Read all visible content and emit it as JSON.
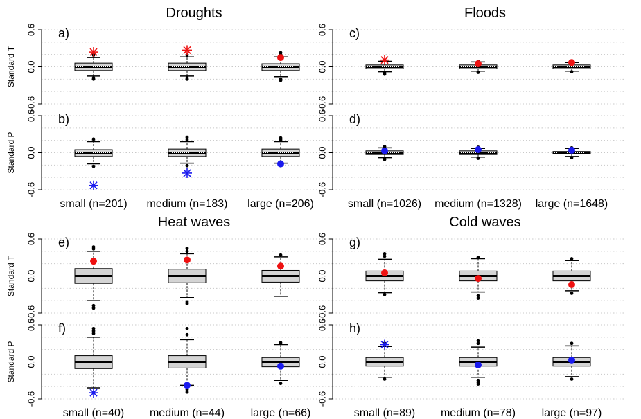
{
  "chart_data": [
    {
      "type": "boxplot",
      "group": "Droughts",
      "panel": "a)",
      "ylabel": "Standard T",
      "ylim": [
        -0.6,
        0.6
      ],
      "yticks": [
        "-0.6",
        "0.0",
        "0.6"
      ],
      "categories": [
        "small (n=201)",
        "medium (n=183)",
        "large (n=206)"
      ],
      "boxes": [
        {
          "min": -0.15,
          "q1": -0.06,
          "median": 0.0,
          "q3": 0.06,
          "max": 0.15,
          "outliers": [
            -0.18,
            -0.2,
            0.19
          ]
        },
        {
          "min": -0.15,
          "q1": -0.06,
          "median": 0.0,
          "q3": 0.06,
          "max": 0.16,
          "outliers": [
            -0.18,
            -0.2,
            0.19
          ]
        },
        {
          "min": -0.16,
          "q1": -0.06,
          "median": 0.0,
          "q3": 0.05,
          "max": 0.16,
          "outliers": [
            -0.2,
            -0.22,
            0.2,
            0.23
          ]
        }
      ],
      "markers": [
        {
          "category": 0,
          "value": 0.24,
          "shape": "star",
          "color": "#ee1111"
        },
        {
          "category": 1,
          "value": 0.27,
          "shape": "star",
          "color": "#ee1111"
        },
        {
          "category": 2,
          "value": 0.15,
          "shape": "circle",
          "color": "#ee1111"
        }
      ]
    },
    {
      "type": "boxplot",
      "group": "Droughts",
      "panel": "b)",
      "ylabel": "Standard P",
      "ylim": [
        -0.6,
        0.6
      ],
      "yticks": [
        "-0.6",
        "0.0",
        "0.6"
      ],
      "categories": [
        "small (n=201)",
        "medium (n=183)",
        "large (n=206)"
      ],
      "boxes": [
        {
          "min": -0.18,
          "q1": -0.06,
          "median": 0.0,
          "q3": 0.05,
          "max": 0.18,
          "outliers": [
            -0.22,
            0.22
          ]
        },
        {
          "min": -0.17,
          "q1": -0.06,
          "median": 0.0,
          "q3": 0.06,
          "max": 0.18,
          "outliers": [
            -0.21,
            0.22,
            0.25
          ]
        },
        {
          "min": -0.17,
          "q1": -0.06,
          "median": 0.0,
          "q3": 0.06,
          "max": 0.18,
          "outliers": [
            -0.21,
            0.21,
            0.24
          ]
        }
      ],
      "markers": [
        {
          "category": 0,
          "value": -0.53,
          "shape": "star",
          "color": "#1a1aee"
        },
        {
          "category": 1,
          "value": -0.33,
          "shape": "star",
          "color": "#1a1aee"
        },
        {
          "category": 2,
          "value": -0.18,
          "shape": "circle",
          "color": "#1a1aee"
        }
      ]
    },
    {
      "type": "boxplot",
      "group": "Floods",
      "panel": "c)",
      "ylabel": "",
      "ylim": [
        -0.6,
        0.6
      ],
      "yticks": [
        "-0.6",
        "0.0",
        "0.6"
      ],
      "categories": [
        "small (n=1026)",
        "medium (n=1328)",
        "large (n=1648)"
      ],
      "boxes": [
        {
          "min": -0.08,
          "q1": -0.03,
          "median": 0.0,
          "q3": 0.03,
          "max": 0.09,
          "outliers": [
            -0.1,
            -0.12,
            0.1
          ]
        },
        {
          "min": -0.07,
          "q1": -0.03,
          "median": 0.0,
          "q3": 0.03,
          "max": 0.08,
          "outliers": [
            -0.09,
            0.09
          ]
        },
        {
          "min": -0.07,
          "q1": -0.03,
          "median": 0.0,
          "q3": 0.03,
          "max": 0.07,
          "outliers": [
            -0.08,
            0.09
          ]
        }
      ],
      "markers": [
        {
          "category": 0,
          "value": 0.11,
          "shape": "star",
          "color": "#ee1111"
        },
        {
          "category": 1,
          "value": 0.05,
          "shape": "circle",
          "color": "#ee1111"
        },
        {
          "category": 2,
          "value": 0.07,
          "shape": "circle",
          "color": "#ee1111"
        }
      ]
    },
    {
      "type": "boxplot",
      "group": "Floods",
      "panel": "d)",
      "ylabel": "",
      "ylim": [
        -0.6,
        0.6
      ],
      "yticks": [
        "-0.6",
        "0.0",
        "0.6"
      ],
      "categories": [
        "small (n=1026)",
        "medium (n=1328)",
        "large (n=1648)"
      ],
      "boxes": [
        {
          "min": -0.08,
          "q1": -0.03,
          "median": 0.0,
          "q3": 0.03,
          "max": 0.08,
          "outliers": [
            -0.1,
            -0.11,
            0.1
          ]
        },
        {
          "min": -0.07,
          "q1": -0.03,
          "median": 0.0,
          "q3": 0.03,
          "max": 0.07,
          "outliers": [
            -0.09,
            0.09
          ]
        },
        {
          "min": -0.06,
          "q1": -0.02,
          "median": 0.0,
          "q3": 0.02,
          "max": 0.07,
          "outliers": [
            -0.08,
            0.08
          ]
        }
      ],
      "markers": [
        {
          "category": 0,
          "value": 0.03,
          "shape": "circle",
          "color": "#1a1aee"
        },
        {
          "category": 1,
          "value": 0.05,
          "shape": "circle",
          "color": "#1a1aee"
        },
        {
          "category": 2,
          "value": 0.04,
          "shape": "circle",
          "color": "#1a1aee"
        }
      ]
    },
    {
      "type": "boxplot",
      "group": "Heat waves",
      "panel": "e)",
      "ylabel": "Standard T",
      "ylim": [
        -0.6,
        0.6
      ],
      "yticks": [
        "-0.6",
        "0.0",
        "0.6"
      ],
      "categories": [
        "small (n=40)",
        "medium (n=44)",
        "large (n=66)"
      ],
      "boxes": [
        {
          "min": -0.4,
          "q1": -0.12,
          "median": 0.0,
          "q3": 0.12,
          "max": 0.4,
          "outliers": [
            -0.48,
            -0.52,
            0.44,
            0.47
          ]
        },
        {
          "min": -0.35,
          "q1": -0.11,
          "median": 0.0,
          "q3": 0.11,
          "max": 0.36,
          "outliers": [
            -0.42,
            -0.45,
            0.4,
            0.45
          ]
        },
        {
          "min": -0.33,
          "q1": -0.1,
          "median": 0.0,
          "q3": 0.09,
          "max": 0.31,
          "outliers": [
            0.34
          ]
        }
      ],
      "markers": [
        {
          "category": 0,
          "value": 0.24,
          "shape": "circle",
          "color": "#ee1111"
        },
        {
          "category": 1,
          "value": 0.26,
          "shape": "circle",
          "color": "#ee1111"
        },
        {
          "category": 2,
          "value": 0.16,
          "shape": "circle",
          "color": "#ee1111"
        }
      ]
    },
    {
      "type": "boxplot",
      "group": "Heat waves",
      "panel": "f)",
      "ylabel": "Standard P",
      "ylim": [
        -0.6,
        0.6
      ],
      "yticks": [
        "-0.6",
        "0.0",
        "0.6"
      ],
      "categories": [
        "small (n=40)",
        "medium (n=44)",
        "large (n=66)"
      ],
      "boxes": [
        {
          "min": -0.42,
          "q1": -0.11,
          "median": 0.0,
          "q3": 0.1,
          "max": 0.4,
          "outliers": [
            0.46,
            0.5,
            0.54
          ]
        },
        {
          "min": -0.38,
          "q1": -0.1,
          "median": 0.0,
          "q3": 0.1,
          "max": 0.36,
          "outliers": [
            -0.45,
            -0.49,
            0.44,
            0.54
          ]
        },
        {
          "min": -0.3,
          "q1": -0.08,
          "median": 0.0,
          "q3": 0.07,
          "max": 0.28,
          "outliers": [
            -0.35,
            0.31
          ]
        }
      ],
      "markers": [
        {
          "category": 0,
          "value": -0.5,
          "shape": "star",
          "color": "#1a1aee"
        },
        {
          "category": 1,
          "value": -0.38,
          "shape": "circle",
          "color": "#1a1aee"
        },
        {
          "category": 2,
          "value": -0.07,
          "shape": "circle",
          "color": "#1a1aee"
        }
      ]
    },
    {
      "type": "boxplot",
      "group": "Cold waves",
      "panel": "g)",
      "ylabel": "",
      "ylim": [
        -0.6,
        0.6
      ],
      "yticks": [
        "-0.6",
        "0.0",
        "0.6"
      ],
      "categories": [
        "small (n=89)",
        "medium (n=78)",
        "large (n=97)"
      ],
      "boxes": [
        {
          "min": -0.27,
          "q1": -0.08,
          "median": 0.0,
          "q3": 0.08,
          "max": 0.27,
          "outliers": [
            -0.3,
            0.32,
            0.36
          ]
        },
        {
          "min": -0.26,
          "q1": -0.08,
          "median": 0.0,
          "q3": 0.08,
          "max": 0.28,
          "outliers": [
            -0.32,
            -0.36,
            0.3
          ]
        },
        {
          "min": -0.24,
          "q1": -0.08,
          "median": 0.0,
          "q3": 0.08,
          "max": 0.25,
          "outliers": [
            -0.28,
            0.28
          ]
        }
      ],
      "markers": [
        {
          "category": 0,
          "value": 0.05,
          "shape": "circle",
          "color": "#ee1111"
        },
        {
          "category": 1,
          "value": -0.04,
          "shape": "circle",
          "color": "#ee1111"
        },
        {
          "category": 2,
          "value": -0.14,
          "shape": "circle",
          "color": "#ee1111"
        }
      ]
    },
    {
      "type": "boxplot",
      "group": "Cold waves",
      "panel": "h)",
      "ylabel": "",
      "ylim": [
        -0.6,
        0.6
      ],
      "yticks": [
        "-0.6",
        "0.0",
        "0.6"
      ],
      "categories": [
        "small (n=89)",
        "medium (n=78)",
        "large (n=97)"
      ],
      "boxes": [
        {
          "min": -0.25,
          "q1": -0.07,
          "median": 0.0,
          "q3": 0.07,
          "max": 0.25,
          "outliers": [
            -0.28,
            0.3
          ]
        },
        {
          "min": -0.25,
          "q1": -0.07,
          "median": 0.0,
          "q3": 0.07,
          "max": 0.24,
          "outliers": [
            -0.3,
            -0.33,
            -0.36,
            0.3,
            0.34
          ]
        },
        {
          "min": -0.24,
          "q1": -0.07,
          "median": 0.0,
          "q3": 0.07,
          "max": 0.26,
          "outliers": [
            -0.28,
            0.3
          ]
        }
      ],
      "markers": [
        {
          "category": 0,
          "value": 0.28,
          "shape": "star",
          "color": "#1a1aee"
        },
        {
          "category": 1,
          "value": -0.05,
          "shape": "circle",
          "color": "#1a1aee"
        },
        {
          "category": 2,
          "value": 0.03,
          "shape": "circle",
          "color": "#1a1aee"
        }
      ]
    }
  ],
  "colors": {
    "box_fill": "#d4d4d4",
    "axis": "#000000",
    "grid": "#c8c8c8"
  }
}
